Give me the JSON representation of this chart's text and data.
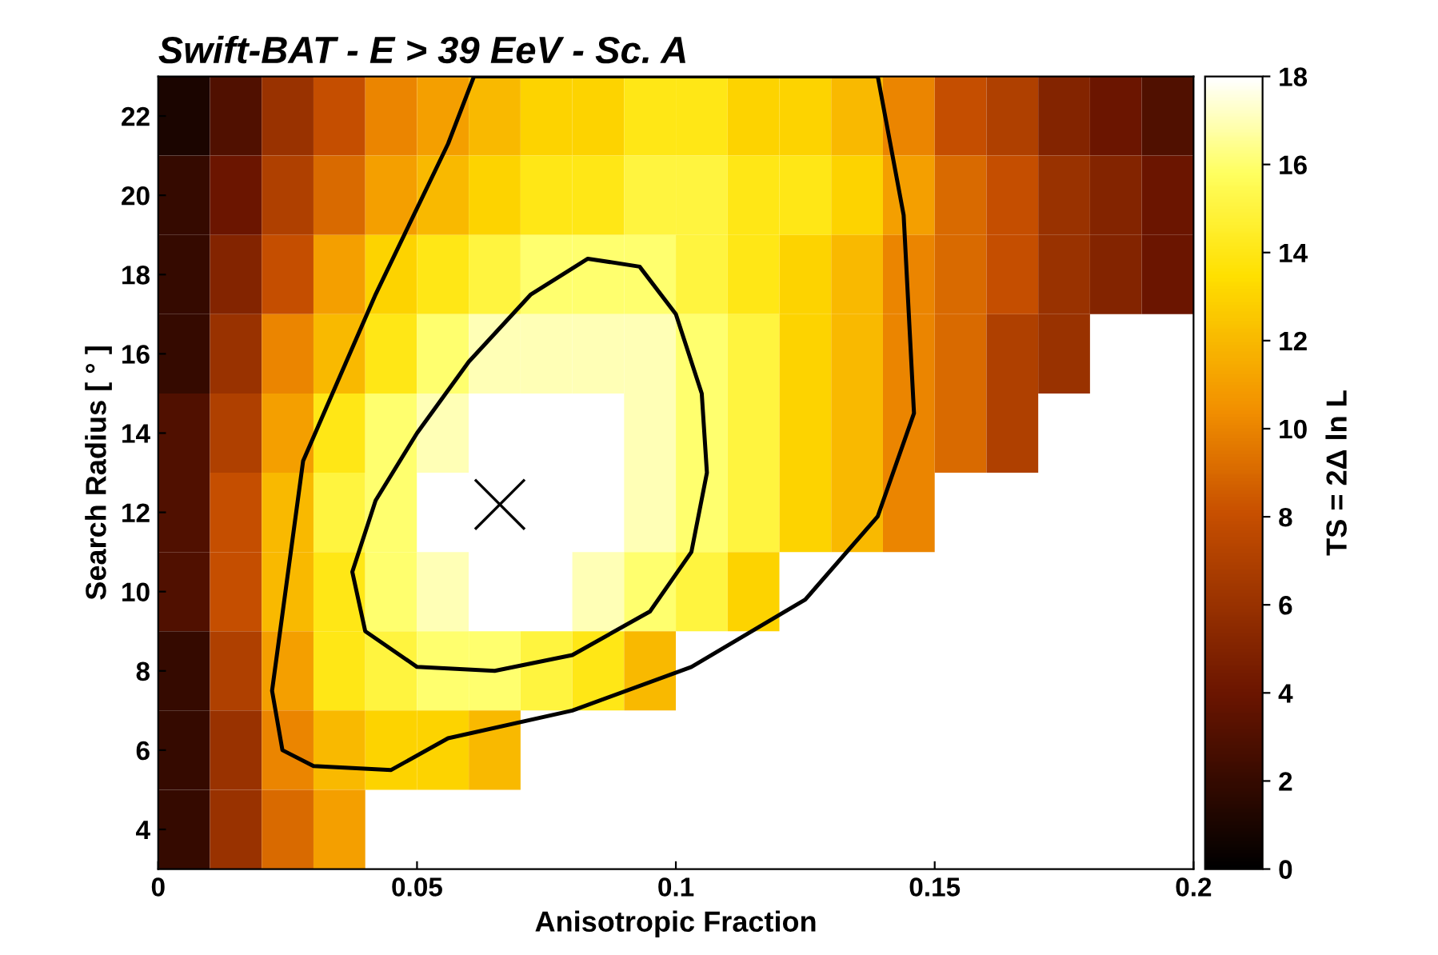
{
  "chart_data": {
    "type": "heatmap",
    "title": "Swift-BAT - E > 39 EeV - Sc. A",
    "xlabel": "Anisotropic Fraction",
    "ylabel": "Search Radius [ ° ]",
    "clabel": "TS = 2Δ ln L",
    "cells": [
      [
        1,
        3,
        6,
        8,
        10,
        11,
        12,
        13,
        13,
        14,
        14,
        13,
        13,
        12,
        10,
        8,
        7,
        5,
        4,
        3
      ],
      [
        2,
        4,
        7,
        9,
        11,
        12,
        13,
        14,
        14,
        15,
        15,
        14,
        14,
        13,
        11,
        9,
        8,
        6,
        5,
        4
      ],
      [
        2,
        5,
        8,
        11,
        13,
        14,
        15,
        16,
        16,
        16,
        15,
        14,
        13,
        12,
        10,
        9,
        8,
        6,
        5,
        4
      ],
      [
        2,
        6,
        10,
        12,
        14,
        16,
        17,
        17,
        17,
        17,
        16,
        15,
        13,
        12,
        10,
        9,
        7,
        6,
        null,
        null
      ],
      [
        3,
        7,
        11,
        14,
        16,
        17,
        18,
        18,
        18,
        17,
        16,
        15,
        13,
        12,
        10,
        9,
        7,
        null,
        null,
        null
      ],
      [
        3,
        8,
        12,
        15,
        16,
        18,
        18,
        18,
        18,
        17,
        16,
        15,
        13,
        12,
        10,
        null,
        null,
        null,
        null,
        null
      ],
      [
        3,
        8,
        12,
        14,
        16,
        17,
        18,
        18,
        17,
        16,
        15,
        13,
        null,
        null,
        null,
        null,
        null,
        null,
        null,
        null
      ],
      [
        2,
        7,
        11,
        14,
        15,
        16,
        16,
        15,
        14,
        12,
        null,
        null,
        null,
        null,
        null,
        null,
        null,
        null,
        null,
        null
      ],
      [
        2,
        6,
        10,
        12,
        13,
        13,
        12,
        null,
        null,
        null,
        null,
        null,
        null,
        null,
        null,
        null,
        null,
        null,
        null,
        null
      ],
      [
        2,
        6,
        9,
        11,
        null,
        null,
        null,
        null,
        null,
        null,
        null,
        null,
        null,
        null,
        null,
        null,
        null,
        null,
        null,
        null
      ]
    ],
    "clim": [
      0,
      18
    ],
    "cticks": [
      0,
      2,
      4,
      6,
      8,
      10,
      12,
      14,
      16,
      18
    ],
    "xlim": [
      0,
      0.2
    ],
    "ylim": [
      3,
      23
    ],
    "xticks": [
      0,
      0.05,
      0.1,
      0.15,
      0.2
    ],
    "yticks": [
      4,
      6,
      8,
      10,
      12,
      14,
      16,
      18,
      20,
      22
    ],
    "series": [
      {
        "type": "scatter",
        "color": "#000000",
        "marker": "cross",
        "x": [
          0.066
        ],
        "values": [
          12.2
        ]
      }
    ]
  }
}
